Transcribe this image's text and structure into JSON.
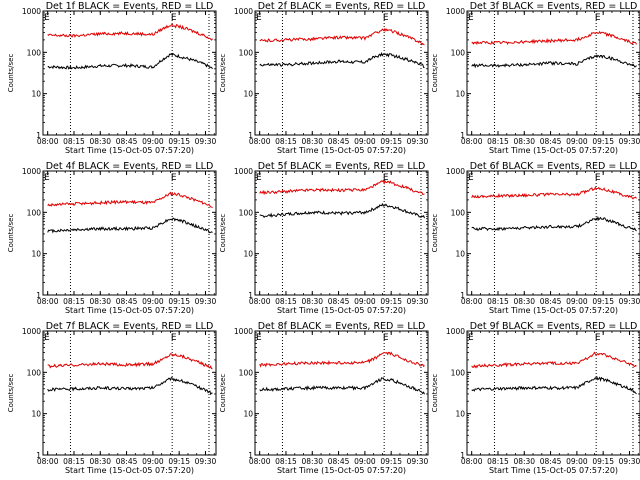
{
  "figure": {
    "xlabel": "Start Time (15-Oct-05 07:57:20)",
    "ylabel": "Counts/sec",
    "x_tick_labels": [
      "08:00",
      "08:15",
      "08:30",
      "08:45",
      "09:00",
      "09:15",
      "09:30"
    ],
    "y_tick_labels": [
      "1",
      "10",
      "100",
      "1000"
    ],
    "marker_label": "E",
    "colors": {
      "events": "#000000",
      "lld": "#e00000",
      "axes": "#000000",
      "background": "#ffffff"
    }
  },
  "chart_data": [
    {
      "type": "line",
      "title": "Det 1f BLACK = Events, RED = LLD",
      "xlim": [
        "07:57:20",
        "09:36:00"
      ],
      "ylim": [
        1,
        1000
      ],
      "yscale": "log",
      "x": [
        "08:00",
        "08:15",
        "08:30",
        "08:45",
        "09:00",
        "09:05",
        "09:10",
        "09:15",
        "09:20",
        "09:25",
        "09:30",
        "09:34"
      ],
      "series": [
        {
          "name": "Events",
          "color": "#000000",
          "values": [
            45,
            42,
            47,
            48,
            44,
            65,
            90,
            80,
            70,
            60,
            50,
            40
          ]
        },
        {
          "name": "LLD",
          "color": "#e00000",
          "values": [
            260,
            250,
            280,
            290,
            270,
            360,
            460,
            420,
            360,
            300,
            250,
            200
          ]
        }
      ],
      "vlines_dotted": [
        "08:13",
        "09:11",
        "09:32"
      ],
      "marker_x": "09:12"
    },
    {
      "type": "line",
      "title": "Det 2f BLACK = Events, RED = LLD",
      "xlim": [
        "07:57:20",
        "09:36:00"
      ],
      "ylim": [
        1,
        1000
      ],
      "yscale": "log",
      "x": [
        "08:00",
        "08:15",
        "08:30",
        "08:45",
        "09:00",
        "09:05",
        "09:10",
        "09:15",
        "09:20",
        "09:25",
        "09:30",
        "09:34"
      ],
      "series": [
        {
          "name": "Events",
          "color": "#000000",
          "values": [
            50,
            50,
            55,
            60,
            58,
            75,
            90,
            85,
            75,
            65,
            55,
            45
          ]
        },
        {
          "name": "LLD",
          "color": "#e00000",
          "values": [
            190,
            200,
            210,
            230,
            220,
            280,
            350,
            330,
            280,
            230,
            190,
            150
          ]
        }
      ],
      "vlines_dotted": [
        "08:13",
        "09:11",
        "09:32"
      ],
      "marker_x": "09:12"
    },
    {
      "type": "line",
      "title": "Det 3f BLACK = Events, RED = LLD",
      "xlim": [
        "07:57:20",
        "09:36:00"
      ],
      "ylim": [
        1,
        1000
      ],
      "yscale": "log",
      "x": [
        "08:00",
        "08:15",
        "08:30",
        "08:45",
        "09:00",
        "09:05",
        "09:10",
        "09:15",
        "09:20",
        "09:25",
        "09:30",
        "09:34"
      ],
      "series": [
        {
          "name": "Events",
          "color": "#000000",
          "values": [
            48,
            48,
            50,
            55,
            52,
            65,
            80,
            80,
            70,
            60,
            52,
            45
          ]
        },
        {
          "name": "LLD",
          "color": "#e00000",
          "values": [
            170,
            170,
            180,
            190,
            200,
            240,
            300,
            290,
            250,
            210,
            180,
            160
          ]
        }
      ],
      "vlines_dotted": [
        "08:13",
        "09:11",
        "09:32"
      ],
      "marker_x": "09:12"
    },
    {
      "type": "line",
      "title": "Det 4f BLACK = Events, RED = LLD",
      "xlim": [
        "07:57:20",
        "09:36:00"
      ],
      "ylim": [
        1,
        1000
      ],
      "yscale": "log",
      "x": [
        "08:00",
        "08:15",
        "08:30",
        "08:45",
        "09:00",
        "09:05",
        "09:10",
        "09:15",
        "09:20",
        "09:25",
        "09:30",
        "09:34"
      ],
      "series": [
        {
          "name": "Events",
          "color": "#000000",
          "values": [
            35,
            38,
            40,
            40,
            42,
            55,
            70,
            65,
            55,
            45,
            38,
            32
          ]
        },
        {
          "name": "LLD",
          "color": "#e00000",
          "values": [
            150,
            160,
            170,
            180,
            170,
            220,
            280,
            270,
            230,
            190,
            160,
            140
          ]
        }
      ],
      "vlines_dotted": [
        "08:13",
        "09:11",
        "09:32"
      ],
      "marker_x": "09:12"
    },
    {
      "type": "line",
      "title": "Det 5f BLACK = Events, RED = LLD",
      "xlim": [
        "07:57:20",
        "09:36:00"
      ],
      "ylim": [
        1,
        1000
      ],
      "yscale": "log",
      "x": [
        "08:00",
        "08:15",
        "08:30",
        "08:45",
        "09:00",
        "09:05",
        "09:10",
        "09:15",
        "09:20",
        "09:25",
        "09:30",
        "09:34"
      ],
      "series": [
        {
          "name": "Events",
          "color": "#000000",
          "values": [
            80,
            90,
            100,
            95,
            100,
            120,
            150,
            140,
            120,
            100,
            85,
            75
          ]
        },
        {
          "name": "LLD",
          "color": "#e00000",
          "values": [
            300,
            320,
            350,
            340,
            350,
            430,
            550,
            520,
            440,
            370,
            310,
            270
          ]
        }
      ],
      "vlines_dotted": [
        "08:13",
        "09:11",
        "09:32"
      ],
      "marker_x": "09:12"
    },
    {
      "type": "line",
      "title": "Det 6f BLACK = Events, RED = LLD",
      "xlim": [
        "07:57:20",
        "09:36:00"
      ],
      "ylim": [
        1,
        1000
      ],
      "yscale": "log",
      "x": [
        "08:00",
        "08:15",
        "08:30",
        "08:45",
        "09:00",
        "09:05",
        "09:10",
        "09:15",
        "09:20",
        "09:25",
        "09:30",
        "09:34"
      ],
      "series": [
        {
          "name": "Events",
          "color": "#000000",
          "values": [
            40,
            40,
            42,
            45,
            45,
            55,
            70,
            70,
            60,
            50,
            42,
            38
          ]
        },
        {
          "name": "LLD",
          "color": "#e00000",
          "values": [
            240,
            250,
            260,
            270,
            270,
            320,
            380,
            370,
            320,
            270,
            240,
            220
          ]
        }
      ],
      "vlines_dotted": [
        "08:13",
        "09:11",
        "09:32"
      ],
      "marker_x": "09:12"
    },
    {
      "type": "line",
      "title": "Det 7f BLACK = Events, RED = LLD",
      "xlim": [
        "07:57:20",
        "09:36:00"
      ],
      "ylim": [
        1,
        1000
      ],
      "yscale": "log",
      "x": [
        "08:00",
        "08:15",
        "08:30",
        "08:45",
        "09:00",
        "09:05",
        "09:10",
        "09:15",
        "09:20",
        "09:25",
        "09:30",
        "09:34"
      ],
      "series": [
        {
          "name": "Events",
          "color": "#000000",
          "values": [
            38,
            40,
            42,
            40,
            42,
            55,
            70,
            65,
            55,
            45,
            38,
            30
          ]
        },
        {
          "name": "LLD",
          "color": "#e00000",
          "values": [
            140,
            150,
            160,
            150,
            160,
            200,
            270,
            260,
            220,
            180,
            150,
            130
          ]
        }
      ],
      "vlines_dotted": [
        "08:13",
        "09:11",
        "09:32"
      ],
      "marker_x": "09:12"
    },
    {
      "type": "line",
      "title": "Det 8f BLACK = Events, RED = LLD",
      "xlim": [
        "07:57:20",
        "09:36:00"
      ],
      "ylim": [
        1,
        1000
      ],
      "yscale": "log",
      "x": [
        "08:00",
        "08:15",
        "08:30",
        "08:45",
        "09:00",
        "09:05",
        "09:10",
        "09:15",
        "09:20",
        "09:25",
        "09:30",
        "09:34"
      ],
      "series": [
        {
          "name": "Events",
          "color": "#000000",
          "values": [
            38,
            40,
            42,
            42,
            42,
            55,
            70,
            65,
            55,
            45,
            38,
            30
          ]
        },
        {
          "name": "LLD",
          "color": "#e00000",
          "values": [
            150,
            160,
            170,
            170,
            170,
            210,
            290,
            280,
            230,
            190,
            160,
            140
          ]
        }
      ],
      "vlines_dotted": [
        "08:13",
        "09:11",
        "09:32"
      ],
      "marker_x": "09:12"
    },
    {
      "type": "line",
      "title": "Det 9f BLACK = Events, RED = LLD",
      "xlim": [
        "07:57:20",
        "09:36:00"
      ],
      "ylim": [
        1,
        1000
      ],
      "yscale": "log",
      "x": [
        "08:00",
        "08:15",
        "08:30",
        "08:45",
        "09:00",
        "09:05",
        "09:10",
        "09:15",
        "09:20",
        "09:25",
        "09:30",
        "09:34"
      ],
      "series": [
        {
          "name": "Events",
          "color": "#000000",
          "values": [
            38,
            40,
            42,
            42,
            42,
            55,
            72,
            68,
            58,
            48,
            40,
            32
          ]
        },
        {
          "name": "LLD",
          "color": "#e00000",
          "values": [
            140,
            150,
            160,
            165,
            165,
            210,
            280,
            270,
            230,
            190,
            160,
            140
          ]
        }
      ],
      "vlines_dotted": [
        "08:13",
        "09:11",
        "09:32"
      ],
      "marker_x": "09:12"
    }
  ]
}
